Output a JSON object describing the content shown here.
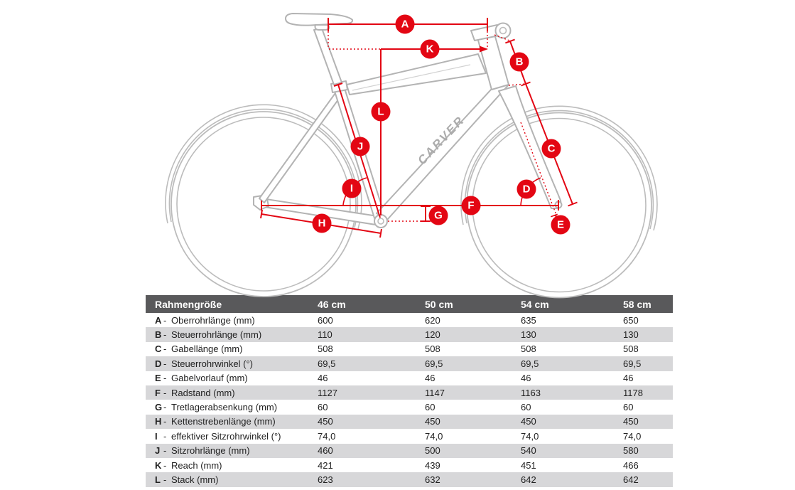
{
  "colors": {
    "accent": "#e30613",
    "frame": "#b3b3b3",
    "header_bg": "#59595b",
    "row_alt": "#d7d7d9"
  },
  "diagram": {
    "brand": "CARVER",
    "markers": [
      {
        "letter": "A"
      },
      {
        "letter": "B"
      },
      {
        "letter": "C"
      },
      {
        "letter": "D"
      },
      {
        "letter": "E"
      },
      {
        "letter": "F"
      },
      {
        "letter": "G"
      },
      {
        "letter": "H"
      },
      {
        "letter": "I"
      },
      {
        "letter": "J"
      },
      {
        "letter": "K"
      },
      {
        "letter": "L"
      }
    ]
  },
  "table": {
    "separator": "-",
    "header": {
      "label_col": "Rahmengröße",
      "size_cols": [
        "46 cm",
        "50 cm",
        "54 cm",
        "58 cm"
      ]
    },
    "rows": [
      {
        "letter": "A",
        "label": "Oberrohrlänge (mm)",
        "values": [
          "600",
          "620",
          "635",
          "650"
        ]
      },
      {
        "letter": "B",
        "label": "Steuerrohrlänge (mm)",
        "values": [
          "110",
          "120",
          "130",
          "130"
        ]
      },
      {
        "letter": "C",
        "label": "Gabellänge (mm)",
        "values": [
          "508",
          "508",
          "508",
          "508"
        ]
      },
      {
        "letter": "D",
        "label": "Steuerrohrwinkel (°)",
        "values": [
          "69,5",
          "69,5",
          "69,5",
          "69,5"
        ]
      },
      {
        "letter": "E",
        "label": "Gabelvorlauf (mm)",
        "values": [
          "46",
          "46",
          "46",
          "46"
        ]
      },
      {
        "letter": "F",
        "label": "Radstand (mm)",
        "values": [
          "1127",
          "1147",
          "1163",
          "1178"
        ]
      },
      {
        "letter": "G",
        "label": "Tretlagerabsenkung (mm)",
        "values": [
          "60",
          "60",
          "60",
          "60"
        ]
      },
      {
        "letter": "H",
        "label": "Kettenstrebenlänge (mm)",
        "values": [
          "450",
          "450",
          "450",
          "450"
        ]
      },
      {
        "letter": "I",
        "label": "effektiver Sitzrohrwinkel (°)",
        "values": [
          "74,0",
          "74,0",
          "74,0",
          "74,0"
        ]
      },
      {
        "letter": "J",
        "label": "Sitzrohrlänge (mm)",
        "values": [
          "460",
          "500",
          "540",
          "580"
        ]
      },
      {
        "letter": "K",
        "label": "Reach (mm)",
        "values": [
          "421",
          "439",
          "451",
          "466"
        ]
      },
      {
        "letter": "L",
        "label": "Stack (mm)",
        "values": [
          "623",
          "632",
          "642",
          "642"
        ]
      }
    ]
  }
}
